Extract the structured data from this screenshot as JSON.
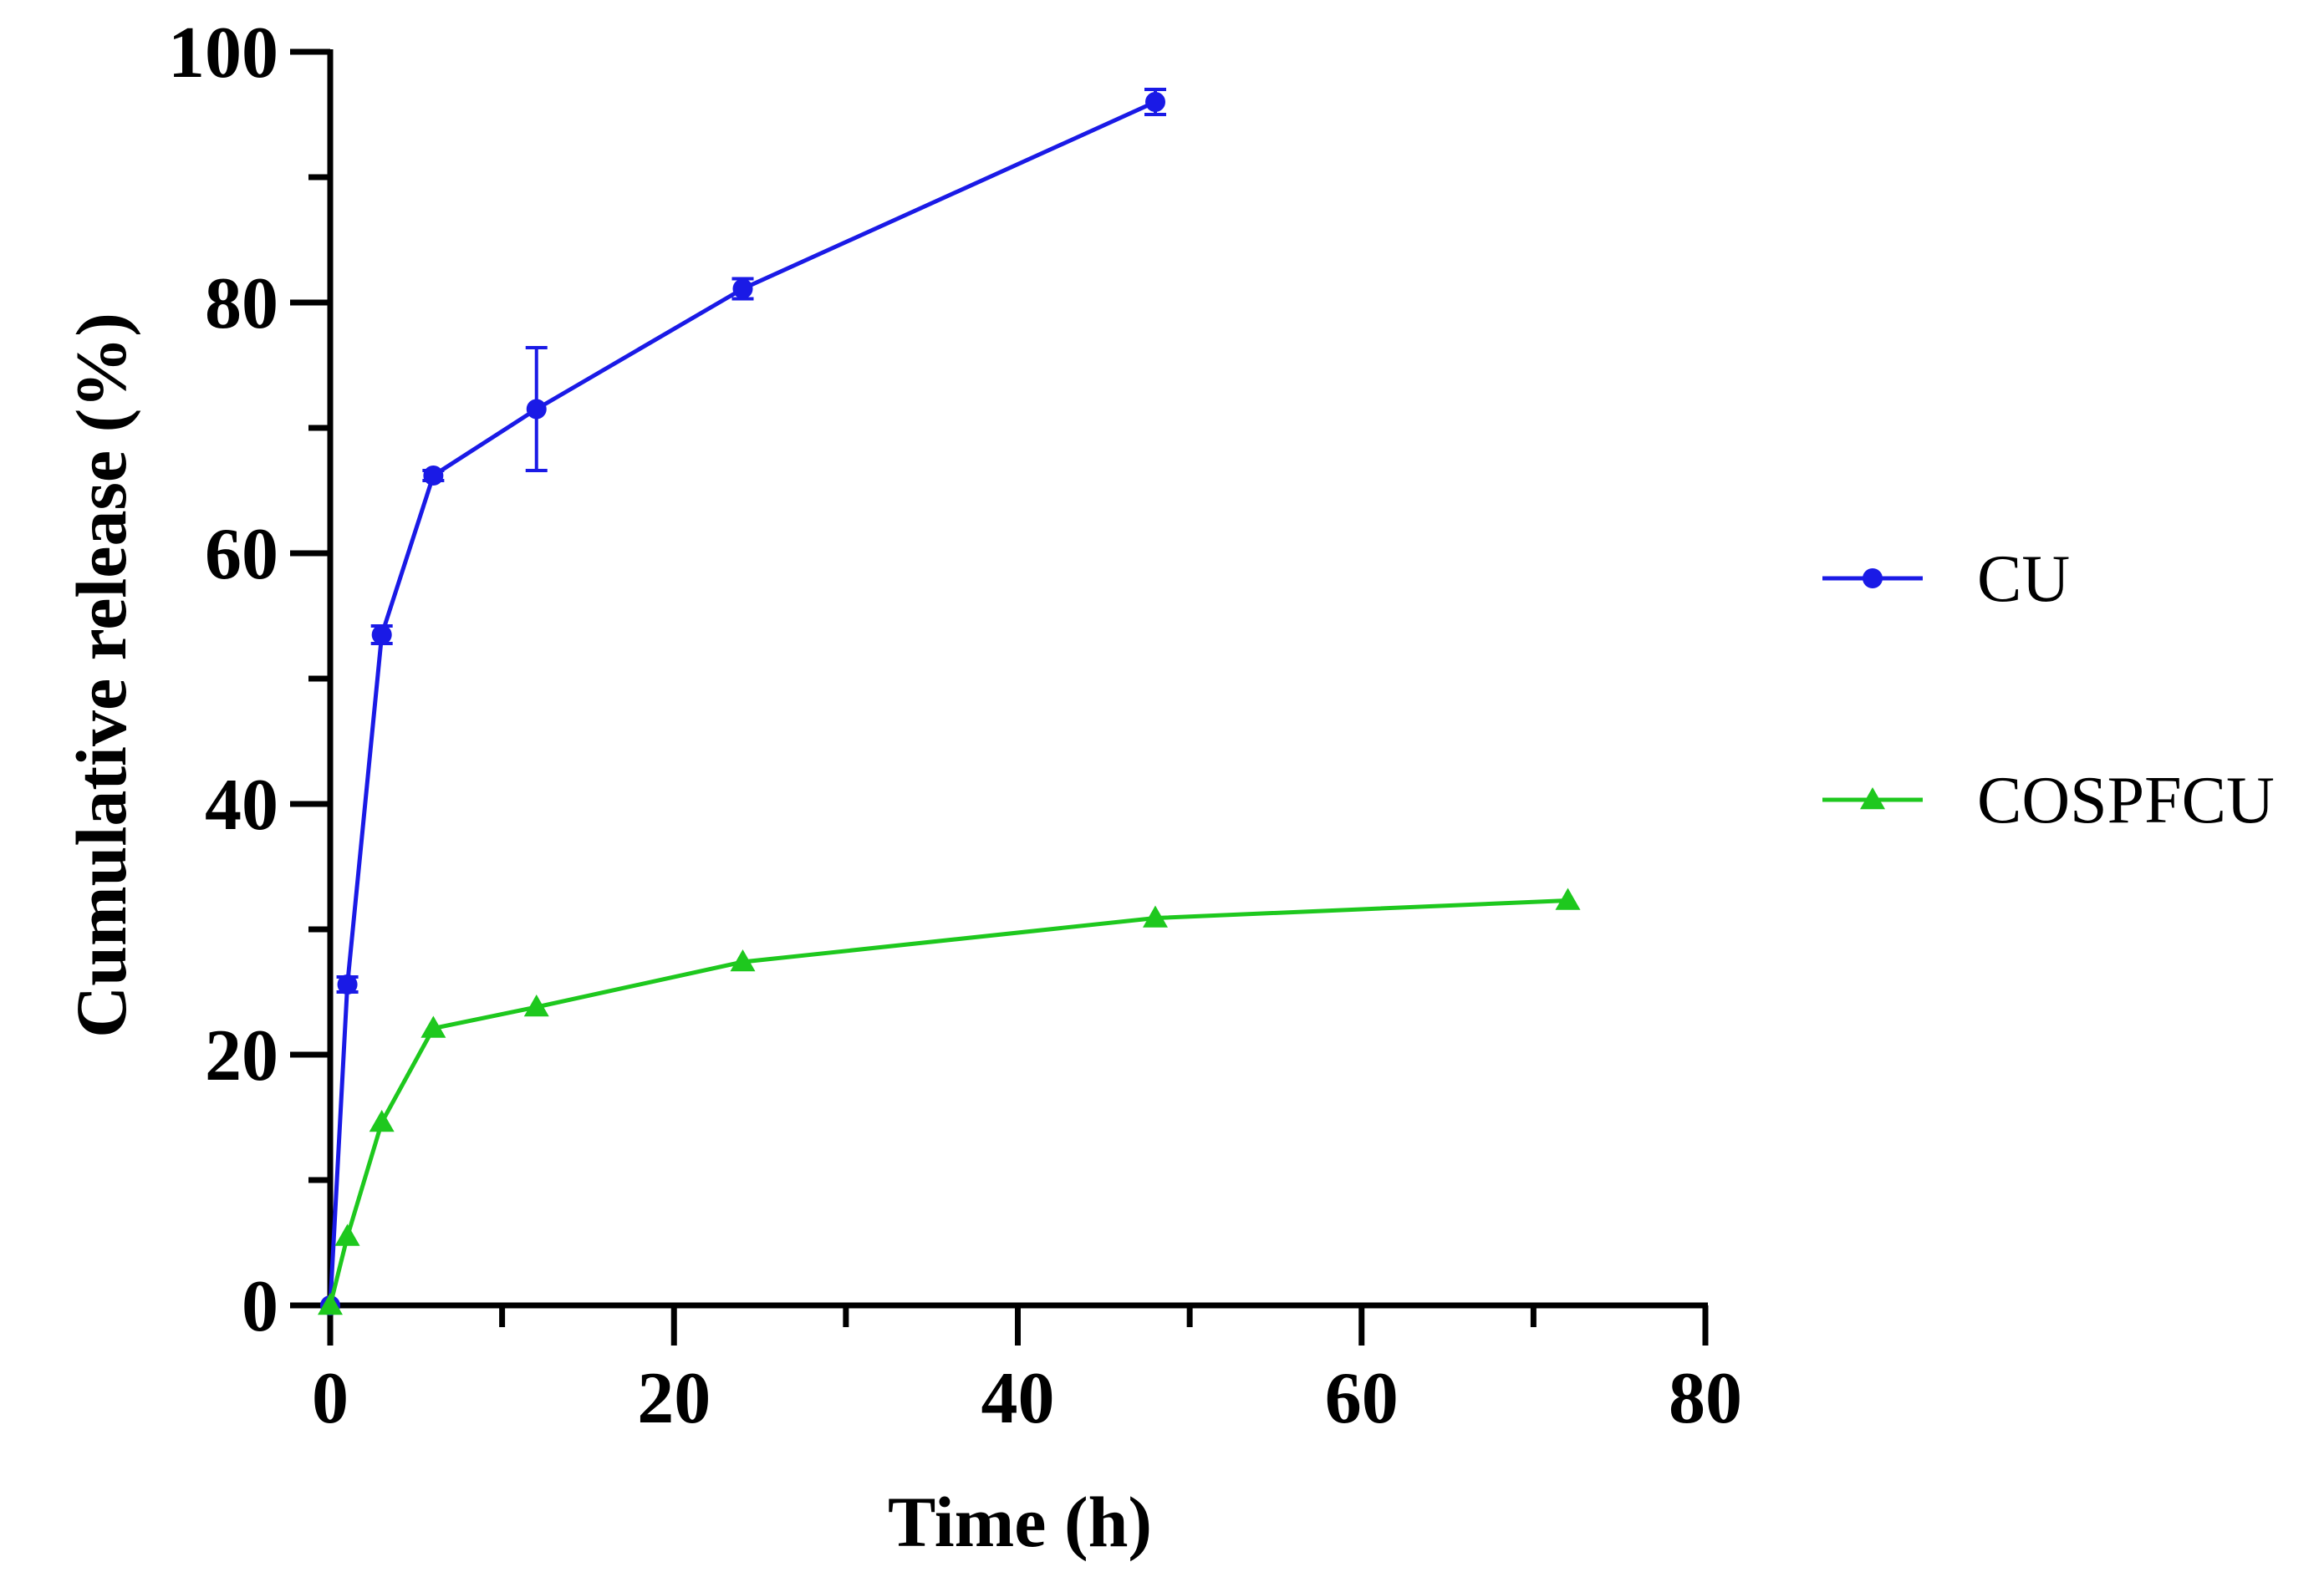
{
  "chart_data": {
    "type": "line",
    "title": "",
    "xlabel": "Time (h)",
    "ylabel": "Cumulative release (%)",
    "xlim": [
      0,
      80
    ],
    "ylim": [
      0,
      100
    ],
    "x_ticks": [
      0,
      20,
      40,
      60,
      80
    ],
    "x_minor_ticks": [
      10,
      30,
      50,
      70
    ],
    "y_ticks": [
      0,
      20,
      40,
      60,
      80,
      100
    ],
    "y_minor_ticks": [
      10,
      30,
      50,
      70,
      90
    ],
    "x_tick_labels": [
      "0",
      "20",
      "40",
      "60",
      "80"
    ],
    "y_tick_labels": [
      "0",
      "20",
      "40",
      "60",
      "80",
      "100"
    ],
    "grid": false,
    "legend_position": "right",
    "series": [
      {
        "name": "CU",
        "color": "#1a1ae6",
        "marker": "circle",
        "x": [
          0,
          1,
          3,
          6,
          12,
          24,
          48
        ],
        "y": [
          0,
          25.6,
          53.5,
          66.2,
          71.5,
          81.1,
          96.0
        ],
        "error": [
          0,
          0.6,
          0.7,
          0.4,
          4.9,
          0.8,
          1.0
        ]
      },
      {
        "name": "COSPFCU",
        "color": "#1ec81e",
        "marker": "triangle",
        "x": [
          0,
          1,
          3,
          6,
          12,
          24,
          48,
          72
        ],
        "y": [
          0,
          5.5,
          14.6,
          22.1,
          23.8,
          27.4,
          30.9,
          32.3
        ],
        "error": [
          0,
          0,
          0,
          0,
          0,
          0,
          0,
          0
        ]
      }
    ]
  }
}
